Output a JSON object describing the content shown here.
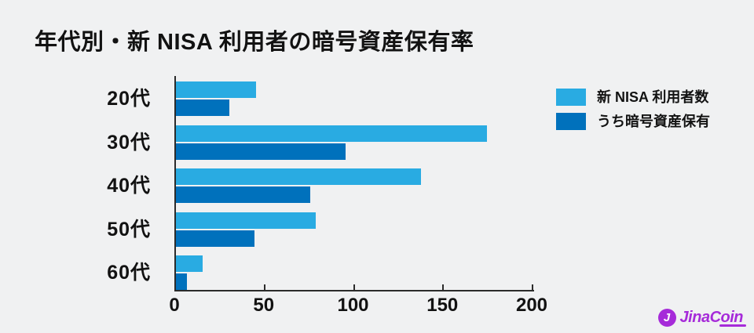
{
  "title": "年代別・新 NISA 利用者の暗号資産保有率",
  "colors": {
    "background": "#F0F1F2",
    "series1": "#29ABE2",
    "series2": "#0071BC",
    "axis": "#2B2B2B",
    "text": "#121212",
    "logo": "#A62BD9"
  },
  "chart_data": {
    "type": "bar",
    "orientation": "horizontal",
    "title": "年代別・新 NISA 利用者の暗号資産保有率",
    "categories": [
      "20代",
      "30代",
      "40代",
      "50代",
      "60代"
    ],
    "series": [
      {
        "name": "新 NISA 利用者数",
        "color": "#29ABE2",
        "values": [
          45,
          174,
          137,
          78,
          15
        ]
      },
      {
        "name": "うち暗号資産保有",
        "color": "#0071BC",
        "values": [
          30,
          95,
          75,
          44,
          6
        ]
      }
    ],
    "xlabel": "",
    "ylabel": "",
    "xlim": [
      0,
      200
    ],
    "xticks": [
      0,
      50,
      100,
      150,
      200
    ],
    "grid": false,
    "legend_position": "top-right"
  },
  "legend": {
    "items": [
      {
        "label": "新 NISA 利用者数",
        "color": "#29ABE2"
      },
      {
        "label": "うち暗号資産保有",
        "color": "#0071BC"
      }
    ]
  },
  "logo": {
    "text": "JinaCoin",
    "initial": "J",
    "icon": "coin-j-icon",
    "color": "#A62BD9"
  }
}
